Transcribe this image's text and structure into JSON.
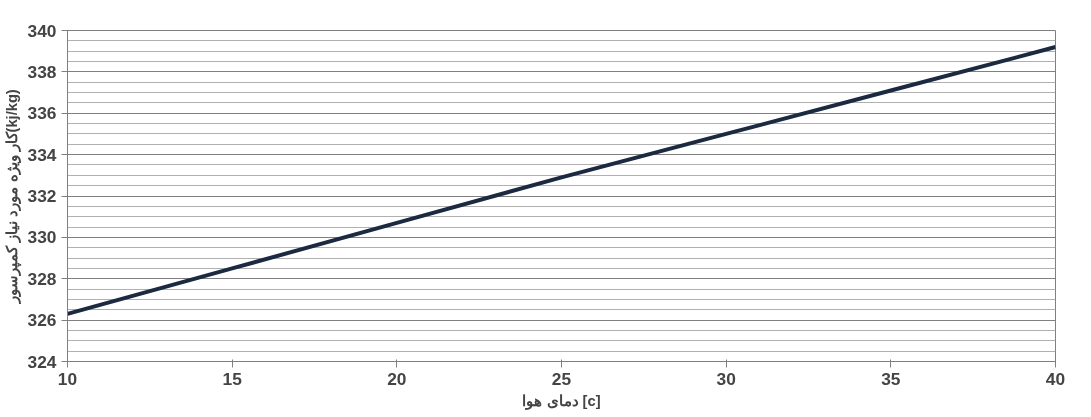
{
  "chart_data": {
    "type": "line",
    "xlabel": "دمای هوا [c]",
    "ylabel": "کار ویژه مورد نیاز کمپرسور(kj/kg)",
    "x": [
      10,
      15,
      20,
      25,
      30,
      35,
      40
    ],
    "series": [
      {
        "color": "#1b2a41",
        "values": [
          326.3,
          328.5,
          330.7,
          332.9,
          335.0,
          337.1,
          339.2
        ]
      }
    ],
    "xlim": [
      10,
      40
    ],
    "xticks": [
      10,
      15,
      20,
      25,
      30,
      35,
      40
    ],
    "ylim": [
      324,
      340
    ],
    "yticks": [
      324,
      326,
      328,
      330,
      332,
      334,
      336,
      338,
      340
    ],
    "grid": "y",
    "marker": "none",
    "line_style": "solid"
  }
}
